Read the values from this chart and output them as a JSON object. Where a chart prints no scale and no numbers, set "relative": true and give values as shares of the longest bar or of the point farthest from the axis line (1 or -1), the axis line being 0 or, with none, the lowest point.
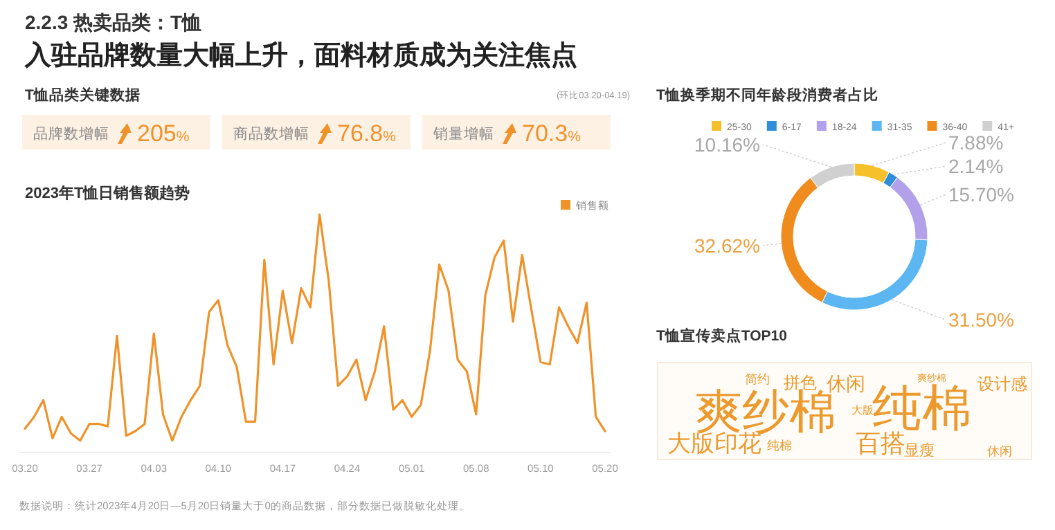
{
  "chart_data": [
    {
      "type": "other",
      "title": "T恤品类关键数据",
      "annotations": [
        "2.2.3 热卖品类：T恤",
        "入驻品牌数量大幅上升，面料材质成为关注焦点",
        "(环比03.20-04.19)",
        "数据说明：统计2023年4月20日—5月20日销量大于0的商品数据，部分数据已做脱敏化处理。"
      ],
      "categories": [
        "品牌数增幅",
        "商品数增幅",
        "销量增幅"
      ],
      "value_labels": [
        "205%",
        "76.8%",
        "70.3%"
      ]
    },
    {
      "type": "line",
      "title": "2023年T恤日销售额趋势",
      "relative": true,
      "legend": "top right",
      "categories": [
        "03.20",
        null,
        null,
        null,
        null,
        null,
        null,
        "03.27",
        null,
        null,
        null,
        null,
        null,
        null,
        "04.03",
        null,
        null,
        null,
        null,
        null,
        null,
        "04.10",
        null,
        null,
        null,
        null,
        null,
        null,
        "04.17",
        null,
        null,
        null,
        null,
        null,
        null,
        "04.24",
        null,
        null,
        null,
        null,
        null,
        null,
        "05.01",
        null,
        null,
        null,
        null,
        null,
        null,
        "05.08",
        null,
        null,
        null,
        null,
        null,
        null,
        "05.10",
        null,
        null,
        null,
        null,
        null,
        null,
        "05.20"
      ],
      "series": [
        {
          "name": "销售额",
          "color": "#f0922a",
          "values": [
            0.1,
            0.15,
            0.22,
            0.06,
            0.15,
            0.08,
            0.05,
            0.12,
            0.12,
            0.11,
            0.49,
            0.07,
            0.09,
            0.12,
            0.5,
            0.16,
            0.05,
            0.15,
            0.22,
            0.28,
            0.59,
            0.64,
            0.45,
            0.36,
            0.13,
            0.13,
            0.81,
            0.37,
            0.68,
            0.46,
            0.69,
            0.61,
            1,
            0.72,
            0.28,
            0.32,
            0.39,
            0.22,
            0.34,
            0.53,
            0.18,
            0.22,
            0.15,
            0.2,
            0.43,
            0.79,
            0.68,
            0.39,
            0.34,
            0.16,
            0.66,
            0.82,
            0.89,
            0.55,
            0.83,
            0.6,
            0.38,
            0.37,
            0.61,
            0.53,
            0.46,
            0.63,
            0.15,
            0.09
          ]
        }
      ]
    },
    {
      "type": "donut",
      "title": "T恤换季期不同年龄段消费者占比",
      "legend": "top",
      "categories": [
        "25-30",
        "6-17",
        "18-24",
        "31-35",
        "36-40",
        "41+"
      ],
      "values": [
        7.88,
        2.14,
        15.7,
        31.5,
        32.62,
        10.16
      ],
      "value_labels": [
        "7.88%",
        "2.14%",
        "15.70%",
        "31.50%",
        "32.62%",
        "10.16%"
      ],
      "colors": [
        "#f5c02a",
        "#2e8fd8",
        "#b3a0ea",
        "#5cb6f2",
        "#f08c1e",
        "#d0d0d0"
      ]
    },
    {
      "type": "other",
      "title": "T恤宣传卖点TOP10",
      "color": "#ec9a2e",
      "categories": [
        "爽纱棉",
        "纯棉",
        "简约",
        "拼色",
        "休闲",
        "大版",
        "爽纱棉",
        "设计感",
        "大版印花",
        "纯棉",
        "百搭",
        "显瘦",
        "休闲"
      ]
    }
  ]
}
